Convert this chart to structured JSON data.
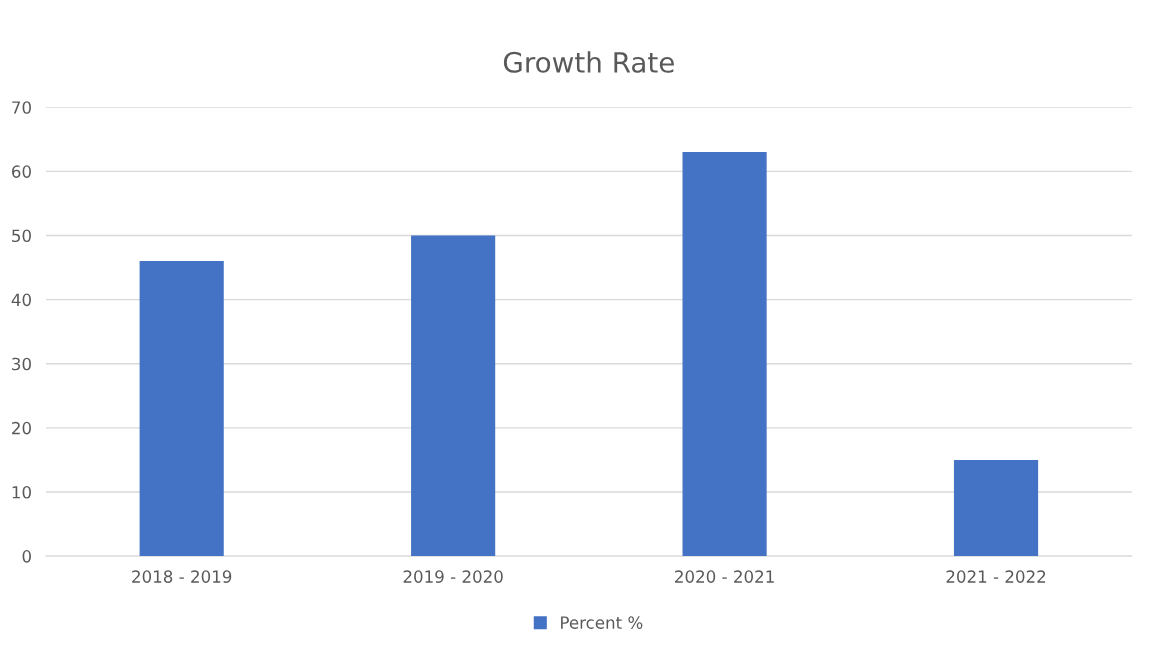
{
  "chart_data": {
    "type": "bar",
    "title": "Growth Rate",
    "categories": [
      "2018 - 2019",
      "2019 - 2020",
      "2020 - 2021",
      "2021 - 2022"
    ],
    "series": [
      {
        "name": "Percent %",
        "color": "#4472c4",
        "values": [
          46,
          50,
          63,
          15
        ]
      }
    ],
    "ylim": [
      0,
      70
    ],
    "yticks": [
      0,
      10,
      20,
      30,
      40,
      50,
      60,
      70
    ],
    "grid": "y",
    "legend": "bottom"
  }
}
